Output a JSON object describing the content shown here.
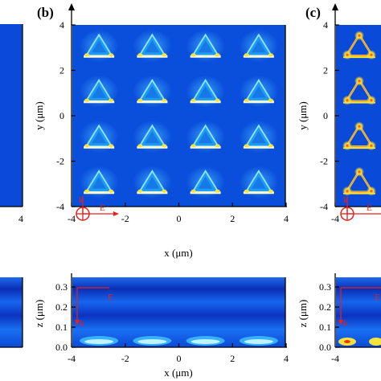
{
  "figure": {
    "panels": {
      "b": {
        "label": "(b)",
        "top_map": {
          "xlabel": "x (μm)",
          "ylabel": "y (μm)",
          "x_ticks": [
            "-4",
            "-2",
            "0",
            "2",
            "4"
          ],
          "y_ticks": [
            "4",
            "2",
            "0",
            "-2",
            "-4"
          ],
          "xlim": [
            -4,
            4
          ],
          "ylim": [
            -4,
            4
          ],
          "particle_x_um": [
            -3,
            -1,
            1,
            3
          ],
          "particle_y_um": [
            -3,
            -1,
            1,
            3
          ],
          "polarization_labels": {
            "k": "k",
            "E": "E"
          }
        },
        "bottom_map": {
          "xlabel": "x (μm)",
          "ylabel": "z (μm)",
          "x_ticks": [
            "-4",
            "-2",
            "0",
            "2",
            "4"
          ],
          "y_ticks": [
            "0.3",
            "0.2",
            "0.1",
            "0.0"
          ],
          "xlim": [
            -4,
            4
          ],
          "ylim": [
            0,
            0.35
          ],
          "polarization_labels": {
            "k": "k",
            "E": "E"
          }
        }
      },
      "c": {
        "label": "(c)",
        "top_map": {
          "ylabel": "y (μm)",
          "x_ticks": [
            "-4"
          ],
          "y_ticks": [
            "4",
            "2",
            "0",
            "-2",
            "-4"
          ],
          "polarization_labels": {
            "k": "k",
            "E": "E"
          }
        },
        "bottom_map": {
          "ylabel": "z (μm)",
          "x_ticks": [
            "-4"
          ],
          "y_ticks": [
            "0.3",
            "0.2",
            "0.1",
            "0.0"
          ],
          "polarization_labels": {
            "k": "k",
            "E": "E"
          }
        }
      },
      "a_partial": {
        "x_ticks": [
          "4"
        ]
      }
    },
    "colors": {
      "field_background": "#0a4fdc",
      "hotspot_yellow": "#f5ec3a",
      "hotspot_red": "#e5241c",
      "annotation_red": "#e8201a"
    }
  }
}
